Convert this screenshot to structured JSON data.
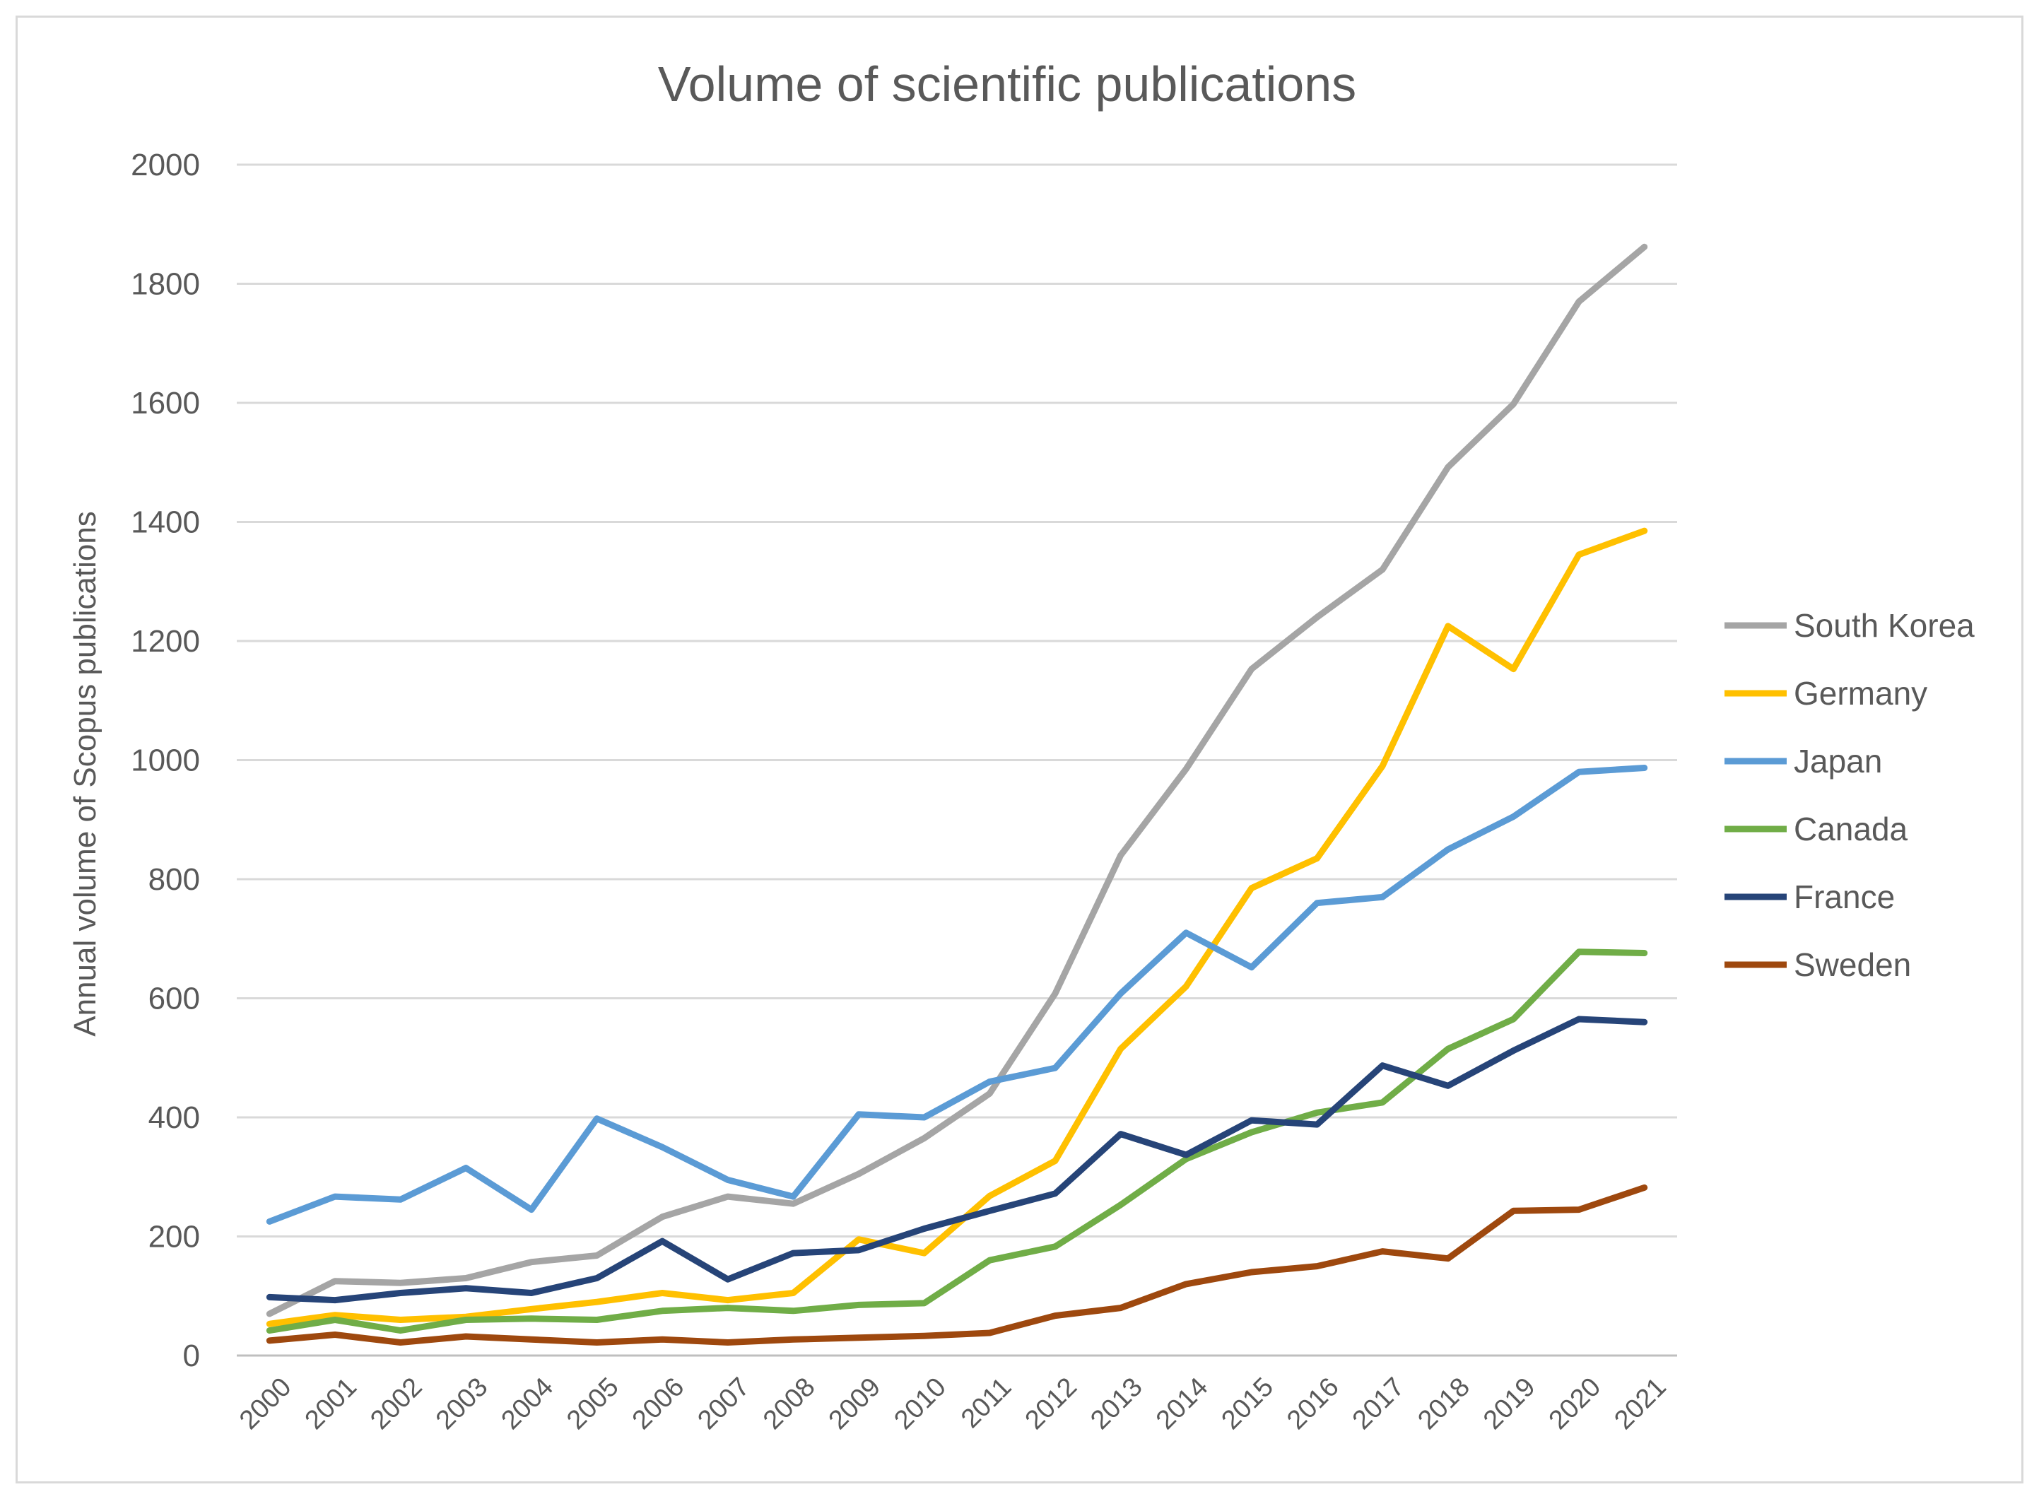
{
  "chart_data": {
    "type": "line",
    "title": "Volume of scientific publications",
    "xlabel": "",
    "ylabel": "Annual volume of Scopus publications",
    "ylim": [
      0,
      2000
    ],
    "yticks": [
      0,
      200,
      400,
      600,
      800,
      1000,
      1200,
      1400,
      1600,
      1800,
      2000
    ],
    "grid": true,
    "legend_position": "right",
    "categories": [
      "2000",
      "2001",
      "2002",
      "2003",
      "2004",
      "2005",
      "2006",
      "2007",
      "2008",
      "2009",
      "2010",
      "2011",
      "2012",
      "2013",
      "2014",
      "2015",
      "2016",
      "2017",
      "2018",
      "2019",
      "2020",
      "2021"
    ],
    "series": [
      {
        "name": "South Korea",
        "color": "#a5a5a5",
        "values": [
          70,
          125,
          122,
          130,
          157,
          168,
          233,
          267,
          255,
          305,
          365,
          440,
          608,
          840,
          985,
          1153,
          1240,
          1320,
          1492,
          1598,
          1770,
          1862
        ]
      },
      {
        "name": "Germany",
        "color": "#ffc000",
        "values": [
          53,
          68,
          60,
          65,
          78,
          90,
          105,
          93,
          105,
          195,
          172,
          268,
          327,
          515,
          620,
          785,
          835,
          990,
          1225,
          1153,
          1345,
          1385
        ]
      },
      {
        "name": "Japan",
        "color": "#5b9bd5",
        "values": [
          225,
          267,
          262,
          315,
          245,
          398,
          350,
          295,
          267,
          405,
          400,
          460,
          483,
          608,
          710,
          652,
          760,
          770,
          850,
          905,
          980,
          987
        ]
      },
      {
        "name": "Canada",
        "color": "#70ad47",
        "values": [
          42,
          60,
          42,
          60,
          62,
          60,
          75,
          80,
          75,
          85,
          88,
          160,
          183,
          253,
          330,
          375,
          408,
          425,
          515,
          565,
          678,
          676
        ]
      },
      {
        "name": "France",
        "color": "#264478",
        "values": [
          98,
          93,
          105,
          113,
          105,
          130,
          192,
          128,
          172,
          177,
          213,
          243,
          272,
          372,
          337,
          395,
          388,
          487,
          453,
          512,
          565,
          560
        ]
      },
      {
        "name": "Sweden",
        "color": "#9e480e",
        "values": [
          25,
          35,
          22,
          32,
          27,
          22,
          27,
          22,
          27,
          30,
          33,
          38,
          67,
          80,
          120,
          140,
          150,
          175,
          163,
          243,
          245,
          282
        ]
      }
    ]
  }
}
